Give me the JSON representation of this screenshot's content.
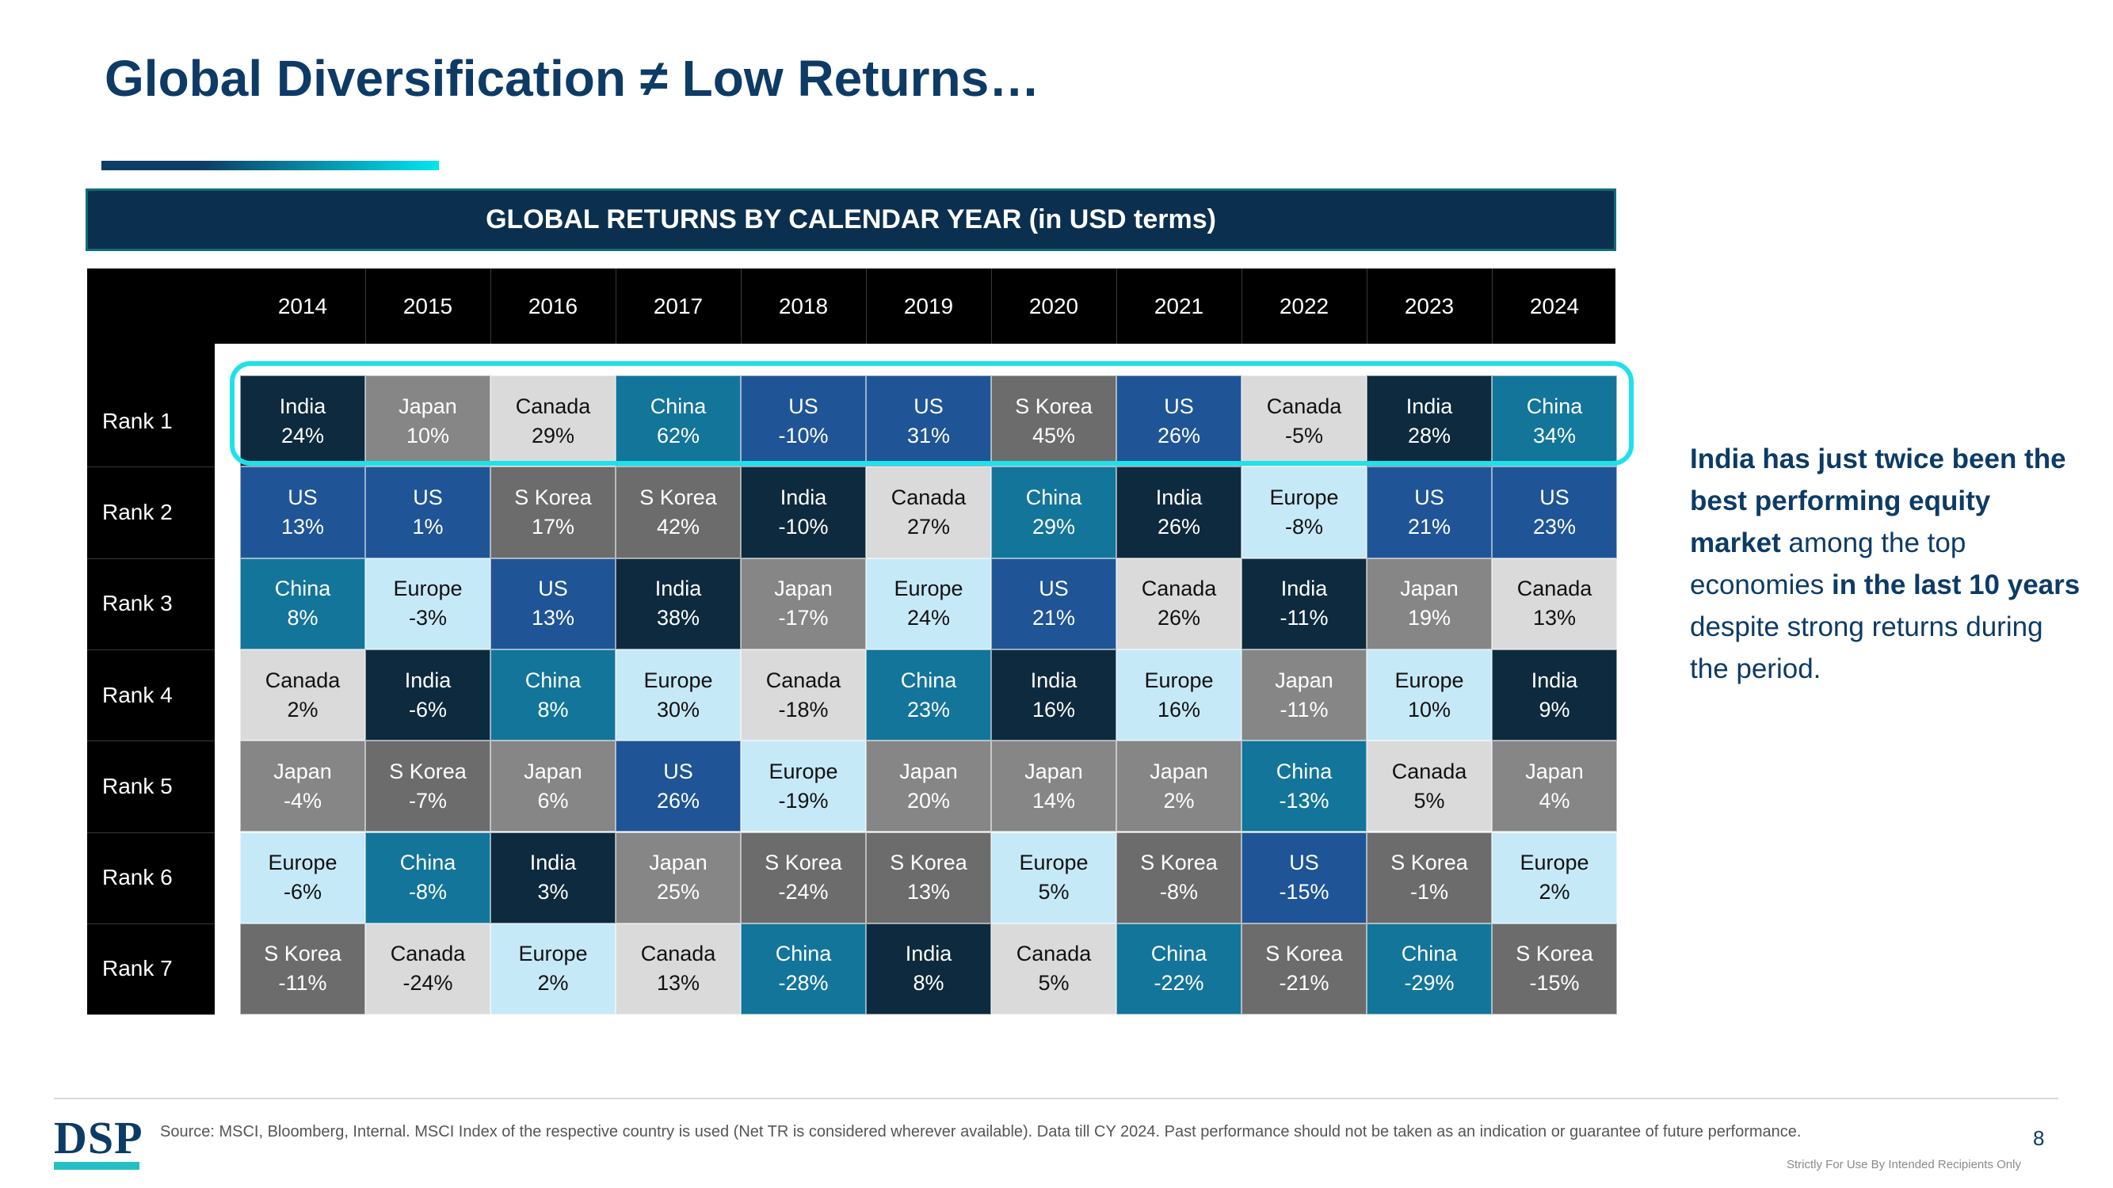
{
  "title": "Global Diversification ≠ Low Returns…",
  "table_title": "GLOBAL RETURNS BY CALENDAR YEAR (in USD terms)",
  "years": [
    "2014",
    "2015",
    "2016",
    "2017",
    "2018",
    "2019",
    "2020",
    "2021",
    "2022",
    "2023",
    "2024"
  ],
  "ranks": [
    "Rank 1",
    "Rank 2",
    "Rank 3",
    "Rank 4",
    "Rank 5",
    "Rank 6",
    "Rank 7"
  ],
  "colors": {
    "India": "#0e2a3e",
    "Japan": "#868686",
    "Canada": "#dadada",
    "China": "#13759a",
    "US": "#1f5596",
    "S Korea": "#6c6c6c",
    "Europe": "#c6e9f8"
  },
  "grid": [
    [
      {
        "c": "India",
        "v": "24%"
      },
      {
        "c": "Japan",
        "v": "10%"
      },
      {
        "c": "Canada",
        "v": "29%"
      },
      {
        "c": "China",
        "v": "62%"
      },
      {
        "c": "US",
        "v": "-10%"
      },
      {
        "c": "US",
        "v": "31%"
      },
      {
        "c": "S Korea",
        "v": "45%"
      },
      {
        "c": "US",
        "v": "26%"
      },
      {
        "c": "Canada",
        "v": "-5%"
      },
      {
        "c": "India",
        "v": "28%"
      },
      {
        "c": "China",
        "v": "34%"
      }
    ],
    [
      {
        "c": "US",
        "v": "13%"
      },
      {
        "c": "US",
        "v": "1%"
      },
      {
        "c": "S Korea",
        "v": "17%"
      },
      {
        "c": "S Korea",
        "v": "42%"
      },
      {
        "c": "India",
        "v": "-10%"
      },
      {
        "c": "Canada",
        "v": "27%"
      },
      {
        "c": "China",
        "v": "29%"
      },
      {
        "c": "India",
        "v": "26%"
      },
      {
        "c": "Europe",
        "v": "-8%"
      },
      {
        "c": "US",
        "v": "21%"
      },
      {
        "c": "US",
        "v": "23%"
      }
    ],
    [
      {
        "c": "China",
        "v": "8%"
      },
      {
        "c": "Europe",
        "v": "-3%"
      },
      {
        "c": "US",
        "v": "13%"
      },
      {
        "c": "India",
        "v": "38%"
      },
      {
        "c": "Japan",
        "v": "-17%"
      },
      {
        "c": "Europe",
        "v": "24%"
      },
      {
        "c": "US",
        "v": "21%"
      },
      {
        "c": "Canada",
        "v": "26%"
      },
      {
        "c": "India",
        "v": "-11%"
      },
      {
        "c": "Japan",
        "v": "19%"
      },
      {
        "c": "Canada",
        "v": "13%"
      }
    ],
    [
      {
        "c": "Canada",
        "v": "2%"
      },
      {
        "c": "India",
        "v": "-6%"
      },
      {
        "c": "China",
        "v": "8%"
      },
      {
        "c": "Europe",
        "v": "30%"
      },
      {
        "c": "Canada",
        "v": "-18%"
      },
      {
        "c": "China",
        "v": "23%"
      },
      {
        "c": "India",
        "v": "16%"
      },
      {
        "c": "Europe",
        "v": "16%"
      },
      {
        "c": "Japan",
        "v": "-11%"
      },
      {
        "c": "Europe",
        "v": "10%"
      },
      {
        "c": "India",
        "v": "9%"
      }
    ],
    [
      {
        "c": "Japan",
        "v": "-4%"
      },
      {
        "c": "S Korea",
        "v": "-7%"
      },
      {
        "c": "Japan",
        "v": "6%"
      },
      {
        "c": "US",
        "v": "26%"
      },
      {
        "c": "Europe",
        "v": "-19%"
      },
      {
        "c": "Japan",
        "v": "20%"
      },
      {
        "c": "Japan",
        "v": "14%"
      },
      {
        "c": "Japan",
        "v": "2%"
      },
      {
        "c": "China",
        "v": "-13%"
      },
      {
        "c": "Canada",
        "v": "5%"
      },
      {
        "c": "Japan",
        "v": "4%"
      }
    ],
    [
      {
        "c": "Europe",
        "v": "-6%"
      },
      {
        "c": "China",
        "v": "-8%"
      },
      {
        "c": "India",
        "v": "3%"
      },
      {
        "c": "Japan",
        "v": "25%"
      },
      {
        "c": "S Korea",
        "v": "-24%"
      },
      {
        "c": "S Korea",
        "v": "13%"
      },
      {
        "c": "Europe",
        "v": "5%"
      },
      {
        "c": "S Korea",
        "v": "-8%"
      },
      {
        "c": "US",
        "v": "-15%"
      },
      {
        "c": "S Korea",
        "v": "-1%"
      },
      {
        "c": "Europe",
        "v": "2%"
      }
    ],
    [
      {
        "c": "S Korea",
        "v": "-11%"
      },
      {
        "c": "Canada",
        "v": "-24%"
      },
      {
        "c": "Europe",
        "v": "2%"
      },
      {
        "c": "Canada",
        "v": "13%"
      },
      {
        "c": "China",
        "v": "-28%"
      },
      {
        "c": "India",
        "v": "8%"
      },
      {
        "c": "Canada",
        "v": "5%"
      },
      {
        "c": "China",
        "v": "-22%"
      },
      {
        "c": "S Korea",
        "v": "-21%"
      },
      {
        "c": "China",
        "v": "-29%"
      },
      {
        "c": "S Korea",
        "v": "-15%"
      }
    ]
  ],
  "side_note": {
    "p1": "India has just twice been the best performing equity market",
    "p2": " among the top economies ",
    "p3": "in the last 10 years",
    "p4": " despite strong returns during the period."
  },
  "footer": {
    "logo": "DSP",
    "source": "Source: MSCI, Bloomberg, Internal. MSCI Index of the respective country is used (Net TR is considered wherever available). Data till CY 2024. Past performance should not be taken as an indication or guarantee of future performance.",
    "page_number": "8",
    "confidential": "Strictly For Use By Intended Recipients Only"
  }
}
